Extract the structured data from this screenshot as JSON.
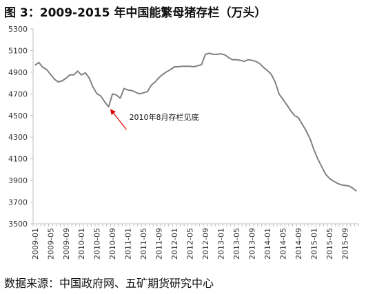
{
  "title": "图 3：2009-2015 年中国能繁母猪存栏（万头）",
  "source": "数据来源：中国政府网、五矿期货研究中心",
  "colors": {
    "line": "#808080",
    "axis": "#bfbfbf",
    "arrow": "#e00000"
  },
  "chart_data": {
    "type": "line",
    "title": "图 3：2009-2015 年中国能繁母猪存栏（万头）",
    "xlabel": "",
    "ylabel": "",
    "ylim": [
      3500,
      5300
    ],
    "yticks": [
      3500,
      3700,
      3900,
      4100,
      4300,
      4500,
      4700,
      4900,
      5100,
      5300
    ],
    "xtick_labels": [
      "2009-01",
      "2009-05",
      "2009-09",
      "2010-01",
      "2010-05",
      "2010-09",
      "2011-01",
      "2011-05",
      "2011-09",
      "2012-01",
      "2012-05",
      "2012-09",
      "2013-01",
      "2013-05",
      "2013-09",
      "2014-01",
      "2014-05",
      "2014-09",
      "2015-01",
      "2015-05",
      "2015-09"
    ],
    "grid": false,
    "legend": "none",
    "x": [
      "2009-01",
      "2009-02",
      "2009-03",
      "2009-04",
      "2009-05",
      "2009-06",
      "2009-07",
      "2009-08",
      "2009-09",
      "2009-10",
      "2009-11",
      "2009-12",
      "2010-01",
      "2010-02",
      "2010-03",
      "2010-04",
      "2010-05",
      "2010-06",
      "2010-07",
      "2010-08",
      "2010-09",
      "2010-10",
      "2010-11",
      "2010-12",
      "2011-01",
      "2011-02",
      "2011-03",
      "2011-04",
      "2011-05",
      "2011-06",
      "2011-07",
      "2011-08",
      "2011-09",
      "2011-10",
      "2011-11",
      "2011-12",
      "2012-01",
      "2012-02",
      "2012-03",
      "2012-04",
      "2012-05",
      "2012-06",
      "2012-07",
      "2012-08",
      "2012-09",
      "2012-10",
      "2012-11",
      "2012-12",
      "2013-01",
      "2013-02",
      "2013-03",
      "2013-04",
      "2013-05",
      "2013-06",
      "2013-07",
      "2013-08",
      "2013-09",
      "2013-10",
      "2013-11",
      "2013-12",
      "2014-01",
      "2014-02",
      "2014-03",
      "2014-04",
      "2014-05",
      "2014-06",
      "2014-07",
      "2014-08",
      "2014-09",
      "2014-10",
      "2014-11",
      "2014-12",
      "2015-01",
      "2015-02",
      "2015-03",
      "2015-04",
      "2015-05",
      "2015-06",
      "2015-07",
      "2015-08",
      "2015-09",
      "2015-10",
      "2015-11",
      "2015-12"
    ],
    "series": [
      {
        "values": [
          4965,
          4990,
          4945,
          4925,
          4880,
          4835,
          4810,
          4820,
          4845,
          4875,
          4875,
          4910,
          4875,
          4895,
          4845,
          4760,
          4700,
          4680,
          4625,
          4580,
          4700,
          4690,
          4660,
          4750,
          4735,
          4730,
          4715,
          4700,
          4710,
          4720,
          4780,
          4810,
          4850,
          4880,
          4905,
          4925,
          4950,
          4950,
          4955,
          4955,
          4955,
          4950,
          4960,
          4970,
          5065,
          5075,
          5065,
          5065,
          5070,
          5060,
          5035,
          5015,
          5015,
          5010,
          5000,
          5015,
          5010,
          5000,
          4980,
          4945,
          4915,
          4880,
          4810,
          4700,
          4650,
          4600,
          4545,
          4500,
          4480,
          4420,
          4360,
          4285,
          4185,
          4100,
          4030,
          3960,
          3920,
          3895,
          3875,
          3860,
          3855,
          3850,
          3830,
          3800
        ]
      }
    ],
    "annotations": [
      {
        "text": "2010年8月存栏见底",
        "x": "2010-08",
        "y": 4580
      }
    ]
  }
}
